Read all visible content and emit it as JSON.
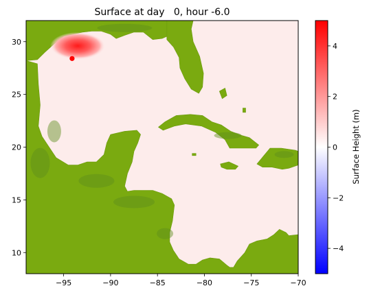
{
  "chart_data": {
    "type": "heatmap",
    "title": "Surface at day   0, hour -6.0",
    "xlabel": "",
    "ylabel": "",
    "xlim": [
      -99,
      -70
    ],
    "ylim": [
      8,
      32
    ],
    "x_ticks": [
      -95,
      -90,
      -85,
      -80,
      -75,
      -70
    ],
    "x_tick_labels": [
      "−95",
      "−90",
      "−85",
      "−80",
      "−75",
      "−70"
    ],
    "y_ticks": [
      10,
      15,
      20,
      25,
      30
    ],
    "y_tick_labels": [
      "10",
      "15",
      "20",
      "25",
      "30"
    ],
    "colorbar": {
      "label": "Surface Height (m)",
      "range": [
        -5,
        5
      ],
      "ticks": [
        -4,
        -2,
        0,
        2,
        4
      ],
      "tick_labels": [
        "−4",
        "−2",
        "0",
        "2",
        "4"
      ],
      "colormap": "bwr",
      "colors": {
        "low": "#0000ff",
        "mid": "#ffffff",
        "high": "#ff0000"
      }
    },
    "land_color": "#7aaa10",
    "ocean_color": "#fdeceb",
    "surge_peak": {
      "lon": -93.5,
      "lat": 29.6,
      "value": 4.5
    },
    "marker": {
      "lon": -94.1,
      "lat": 28.4,
      "color": "#ff0000"
    }
  }
}
